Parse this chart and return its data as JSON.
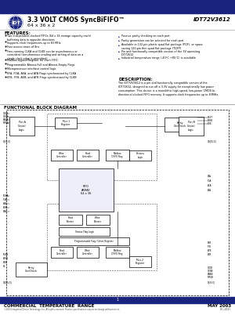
{
  "title_line1": "3.3 VOLT CMOS SyncBiFIFO™",
  "title_line2": "64 x 36 x 2",
  "part_number": "IDT72V3612",
  "header_bar_color": "#1a237e",
  "features_title": "FEATURES:",
  "features_left": [
    "Two independent clocked FIFOs (64 x 36 storage capacity each)\nbuffering data in opposite directions",
    "Supports clock frequencies up to 83 MHz",
    "Fast access times of 8ns",
    "Free-running CLKA and CLKB can be asynchronous or\ncoincident (simultaneous reading and writing of data on a\nsingle clock edge is permitted)",
    "Mailbox bypass Register for each FIFO",
    "Programmable Almost-Full and Almost-Empty Flags",
    "Microprocessor interface control logic",
    "EFA, FDA, AEA, and AFA Flags synchronized by CLKA",
    "EFB, FFB, AEB, and AFB Flags synchronized by CLKB"
  ],
  "features_right": [
    "Passive parity checking on each port",
    "Parity generation can be selected for each port",
    "Available in 132-pin plastic quad flat package (PQF), or space\nsaving 120-pin thin quad flat package (TQFP)",
    "Pin and functionally compatible version of the 5V operating\nIDT72612",
    "Industrial temperature range (-40°C +85°C) is available"
  ],
  "desc_title": "DESCRIPTION:",
  "desc_text": "The IDT72V3612 is a pin and functionally compatible version of the\nIDT72612, designed to run off a 3.3V supply for exceptionally low power\nconsumption. This device is a monolithic high-speed, low-power CMOS bi-\ndirectional clocked FIFO memory. It supports clock frequencies up to 83MHz.",
  "block_diag_title": "FUNCTIONAL BLOCK DIAGRAM",
  "footer_left": "COMMERCIAL  TEMPERATURE  RANGE",
  "footer_right": "MAY 2003",
  "footer_bar_color": "#1a237e",
  "copyright_text": "©2003 Integrated Device Technology, Inc. All rights reserved. Product specifications subject to change without notice.",
  "doc_number": "DSC-40563",
  "bg_color": "#ffffff",
  "text_color": "#000000",
  "blue_color": "#1a237e"
}
